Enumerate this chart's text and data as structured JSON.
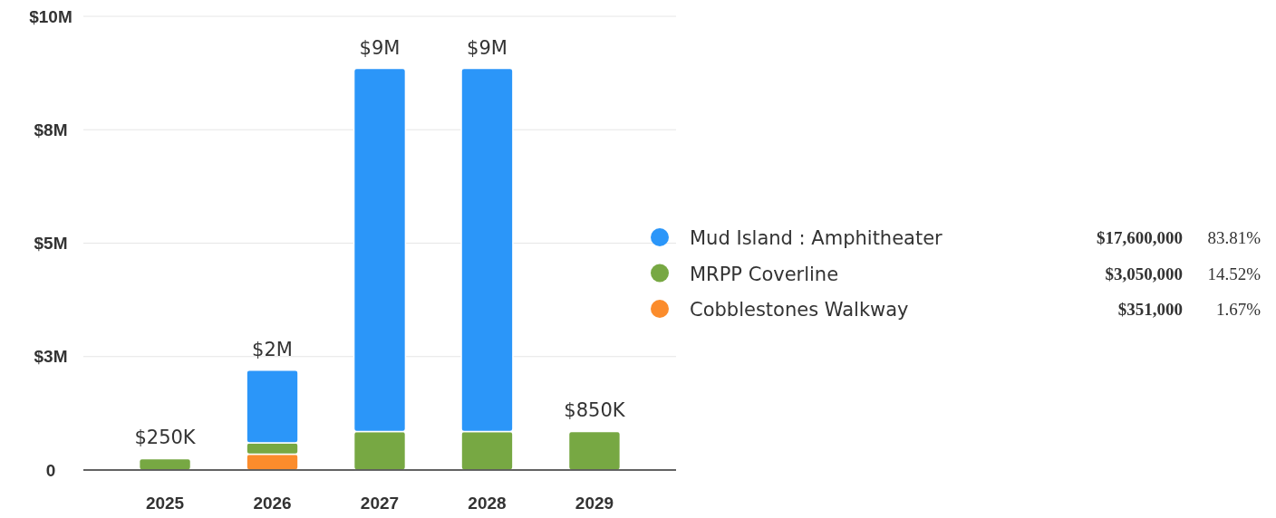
{
  "chart_data": {
    "type": "bar",
    "stacked": true,
    "categories": [
      "2025",
      "2026",
      "2027",
      "2028",
      "2029"
    ],
    "series": [
      {
        "name": "Cobblestones Walkway",
        "color": "#fb8c2c",
        "values": [
          null,
          351000,
          null,
          null,
          null
        ]
      },
      {
        "name": "MRPP Coverline",
        "color": "#77a843",
        "values": [
          250000,
          250000,
          850000,
          850000,
          850000
        ]
      },
      {
        "name": "Mud Island : Amphitheater",
        "color": "#2b96f9",
        "values": [
          null,
          1600000,
          8000000,
          8000000,
          null
        ]
      }
    ],
    "ylim": [
      0,
      10000000
    ],
    "yticks": [
      {
        "value": 0,
        "label": "0"
      },
      {
        "value": 2500000,
        "label": "$3M"
      },
      {
        "value": 5000000,
        "label": "$5M"
      },
      {
        "value": 7500000,
        "label": "$8M"
      },
      {
        "value": 10000000,
        "label": "$10M"
      }
    ],
    "grid": "y",
    "legend": "right",
    "totals": [
      "$250K",
      "$2M",
      "$9M",
      "$9M",
      "$850K"
    ],
    "annotations": [
      "$351,000",
      "1.67%",
      "$3,050,000",
      "14.52%",
      "$17,600,000",
      "83.81%"
    ]
  }
}
